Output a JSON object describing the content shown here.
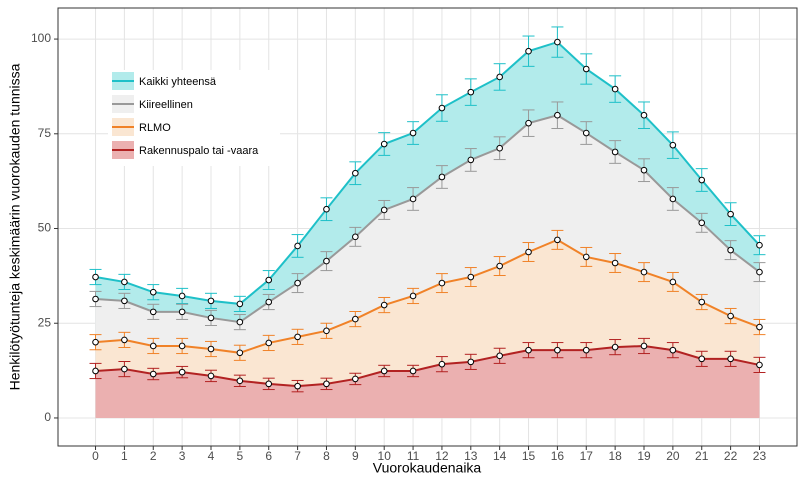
{
  "chart_data": {
    "type": "area-line",
    "x_label": "Vuorokaudenaika",
    "y_label": "Henkilötyötunteja keskimäärin vuorokauden tunnissa",
    "x": [
      0,
      1,
      2,
      3,
      4,
      5,
      6,
      7,
      8,
      9,
      10,
      11,
      12,
      13,
      14,
      15,
      16,
      17,
      18,
      19,
      20,
      21,
      22,
      23
    ],
    "xlim": [
      -1.3,
      24.3
    ],
    "xticks": [
      0,
      1,
      2,
      3,
      4,
      5,
      6,
      7,
      8,
      9,
      10,
      11,
      12,
      13,
      14,
      15,
      16,
      17,
      18,
      19,
      20,
      21,
      22,
      23
    ],
    "ylim": [
      -7.4,
      108.2
    ],
    "yticks": [
      0,
      25,
      50,
      75,
      100
    ],
    "grid": true,
    "legend": "top-left",
    "series": [
      {
        "name": "Kaikki yhteensä",
        "color": "#1ec0c8",
        "fill": "#b2ebeb",
        "values": [
          37.2,
          35.9,
          33.2,
          32.2,
          30.9,
          30.1,
          36.4,
          45.4,
          55.1,
          64.6,
          72.3,
          75.2,
          81.8,
          86.0,
          90.0,
          96.8,
          99.2,
          92.1,
          86.8,
          79.9,
          72.0,
          62.8,
          53.8,
          45.6
        ],
        "errors": [
          2,
          2,
          2,
          2,
          2,
          2,
          2.5,
          3,
          3,
          3,
          3,
          3,
          3.5,
          3.5,
          3.5,
          4,
          4,
          4,
          3.5,
          3.5,
          3.5,
          3,
          3,
          2.5
        ]
      },
      {
        "name": "Kiireellinen",
        "color": "#999999",
        "fill": "#efefef",
        "values": [
          31.4,
          30.9,
          28.0,
          28.0,
          26.4,
          25.3,
          30.6,
          35.6,
          41.4,
          47.8,
          54.9,
          57.8,
          63.6,
          68.1,
          71.2,
          77.8,
          79.9,
          75.2,
          70.2,
          65.4,
          57.8,
          51.5,
          44.3,
          38.5
        ],
        "errors": [
          2,
          2,
          2,
          2,
          2,
          2,
          2,
          2.5,
          2.5,
          2.5,
          2.5,
          3,
          3,
          3,
          3,
          3.5,
          3.5,
          3,
          3,
          3,
          3,
          2.5,
          2.5,
          2.5
        ]
      },
      {
        "name": "RLMO",
        "color": "#f08228",
        "fill": "#fae6d2",
        "values": [
          20.0,
          20.6,
          19.0,
          19.0,
          18.2,
          17.2,
          19.8,
          21.4,
          23.0,
          26.1,
          29.8,
          32.2,
          35.6,
          37.2,
          40.1,
          43.8,
          47.0,
          42.5,
          40.9,
          38.5,
          35.9,
          30.6,
          26.9,
          24.0
        ],
        "errors": [
          2,
          2,
          2,
          2,
          2,
          2,
          2,
          2,
          2,
          2,
          2,
          2,
          2.5,
          2.5,
          2.5,
          2.5,
          2.5,
          2.5,
          2.5,
          2.5,
          2.5,
          2,
          2,
          2
        ]
      },
      {
        "name": "Rakennuspalo tai -vaara",
        "color": "#b22222",
        "fill": "#ebb0b0",
        "values": [
          12.4,
          12.9,
          11.6,
          12.1,
          11.1,
          9.8,
          9.0,
          8.4,
          9.0,
          10.3,
          12.4,
          12.4,
          14.2,
          14.8,
          16.4,
          17.9,
          17.9,
          17.9,
          18.7,
          19.0,
          17.9,
          15.6,
          15.6,
          14.0
        ],
        "errors": [
          2,
          2,
          1.5,
          1.5,
          1.5,
          1.5,
          1.5,
          1.5,
          1.5,
          1.5,
          1.5,
          1.5,
          2,
          2,
          2,
          2,
          2,
          2,
          2,
          2,
          2,
          2,
          2,
          2
        ]
      }
    ]
  }
}
